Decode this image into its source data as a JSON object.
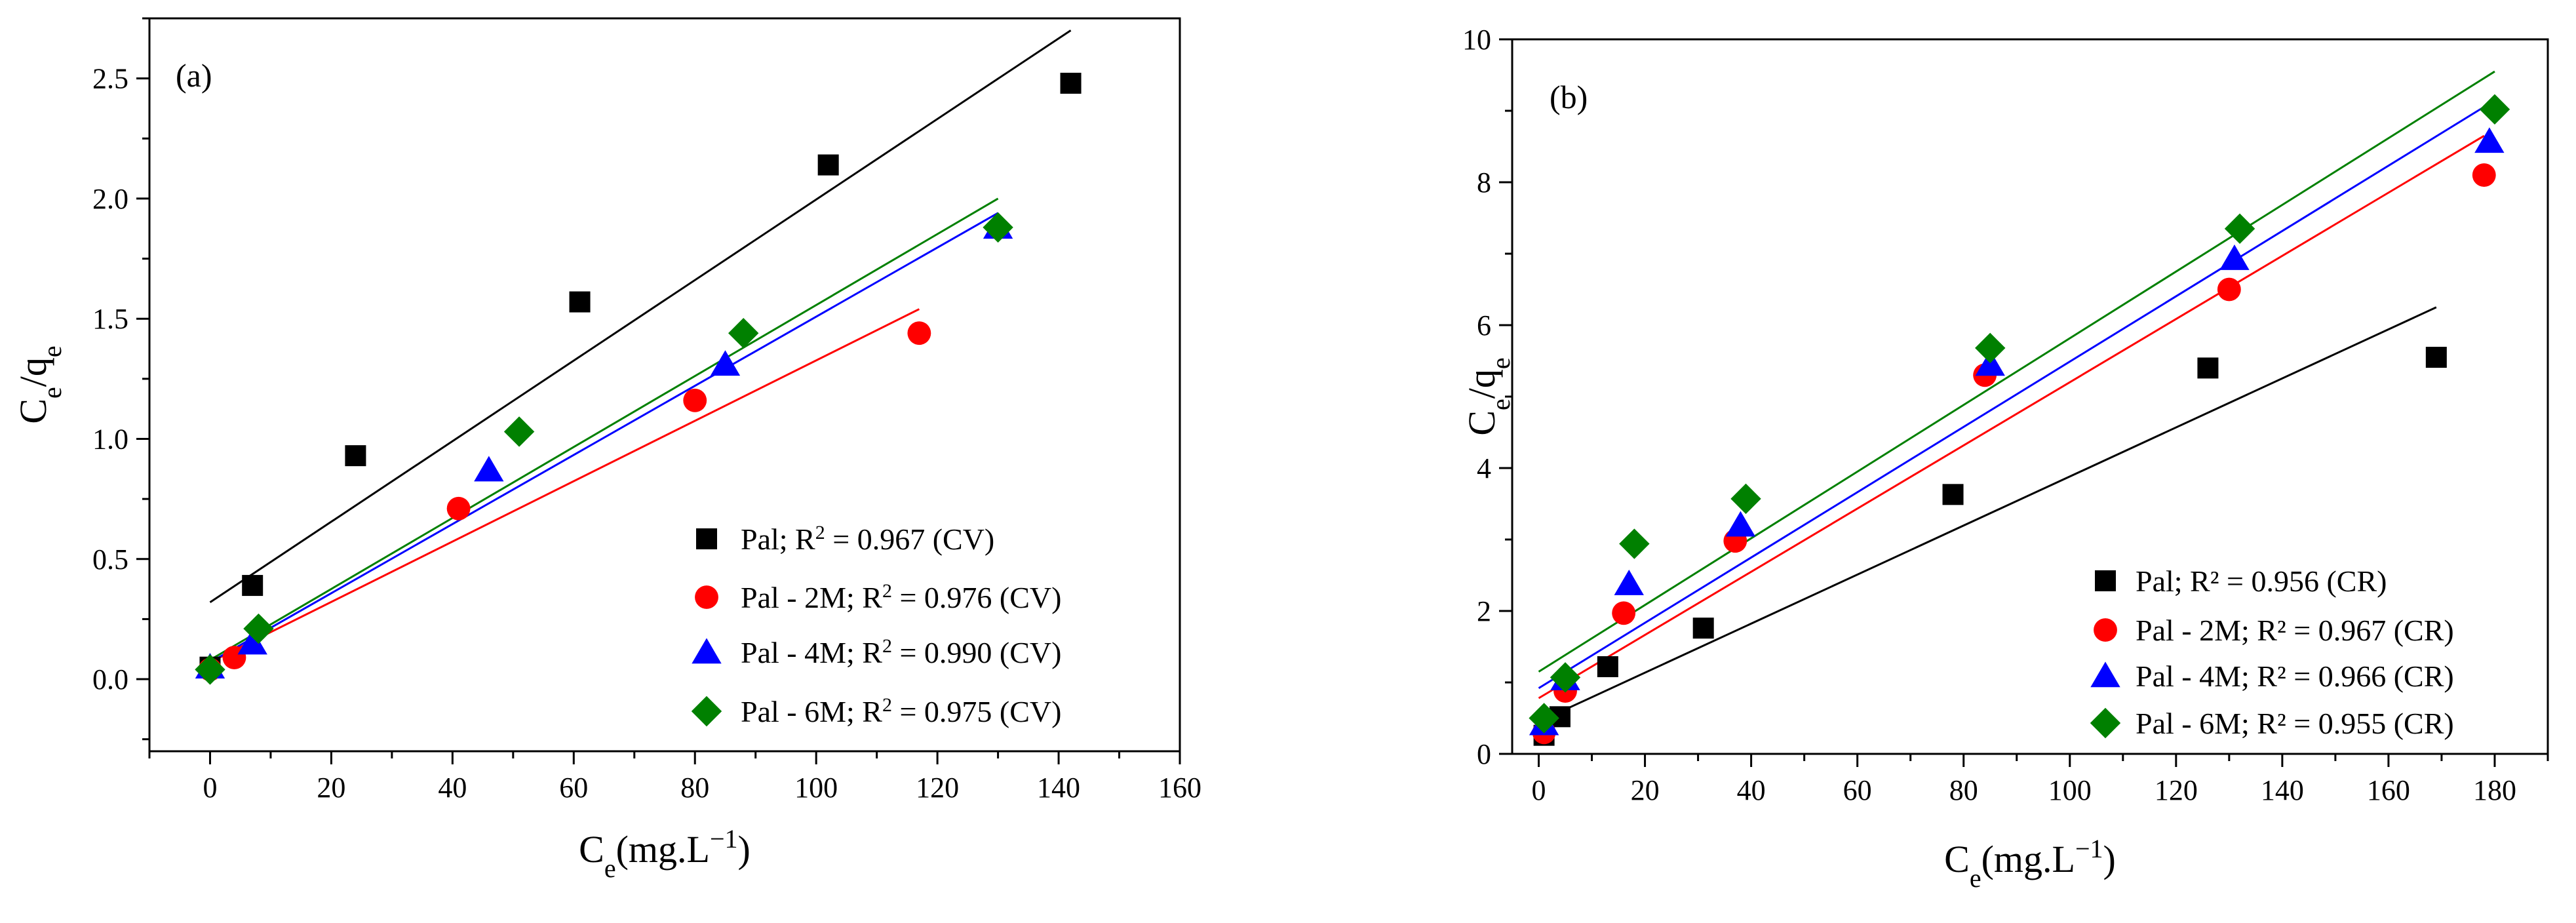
{
  "chart_data": [
    {
      "type": "scatter",
      "panel_label": "(a)",
      "xlabel_main": "C",
      "xlabel_sub": "e",
      "xlabel_unit": "(mg.L",
      "xlabel_sup": "−1",
      "xlabel_close": ")",
      "ylabel_main1": "C",
      "ylabel_sub1": "e",
      "ylabel_mid": "/q",
      "ylabel_sub2": "e",
      "xlim": [
        -10,
        160
      ],
      "ylim": [
        -0.3,
        2.75
      ],
      "xticks": [
        0,
        20,
        40,
        60,
        80,
        100,
        120,
        140,
        160
      ],
      "xtick_labels": [
        "0",
        "20",
        "40",
        "60",
        "80",
        "100",
        "120",
        "140",
        "160"
      ],
      "yticks": [
        0.0,
        0.5,
        1.0,
        1.5,
        2.0,
        2.5
      ],
      "ytick_labels": [
        "0.0",
        "0.5",
        "1.0",
        "1.5",
        "2.0",
        "2.5"
      ],
      "series": [
        {
          "name": "Pal",
          "legend_prefix": "Pal; R",
          "legend_sup": "2",
          "legend_suffix": " = 0.967 (CV)",
          "marker": "square",
          "color": "#000000",
          "x": [
            0,
            7,
            24,
            61,
            102,
            142
          ],
          "y": [
            0.05,
            0.39,
            0.93,
            1.57,
            2.14,
            2.48
          ],
          "fit": {
            "x": [
              0,
              142
            ],
            "y": [
              0.32,
              2.7
            ]
          }
        },
        {
          "name": "Pal - 2M",
          "legend_prefix": "Pal - 2M; R",
          "legend_sup": "2",
          "legend_suffix": " = 0.976 (CV)",
          "marker": "circle",
          "color": "#ff0000",
          "x": [
            0,
            4,
            41,
            80,
            117
          ],
          "y": [
            0.04,
            0.09,
            0.71,
            1.16,
            1.44
          ],
          "fit": {
            "x": [
              0,
              117
            ],
            "y": [
              0.07,
              1.54
            ]
          }
        },
        {
          "name": "Pal - 4M",
          "legend_prefix": "Pal - 4M; R",
          "legend_sup": "2",
          "legend_suffix": " = 0.990 (CV)",
          "marker": "triangle",
          "color": "#0000ff",
          "x": [
            0,
            7,
            46,
            85,
            130
          ],
          "y": [
            0.05,
            0.15,
            0.87,
            1.31,
            1.88
          ],
          "fit": {
            "x": [
              0,
              130
            ],
            "y": [
              0.07,
              1.94
            ]
          }
        },
        {
          "name": "Pal - 6M",
          "legend_prefix": "Pal - 6M; R",
          "legend_sup": "2",
          "legend_suffix": " = 0.975 (CV)",
          "marker": "diamond",
          "color": "#008000",
          "x": [
            0,
            8,
            51,
            88,
            130
          ],
          "y": [
            0.04,
            0.21,
            1.03,
            1.44,
            1.88
          ],
          "fit": {
            "x": [
              0,
              130
            ],
            "y": [
              0.08,
              2.0
            ]
          }
        }
      ]
    },
    {
      "type": "scatter",
      "panel_label": "(b)",
      "xlabel_main": "C",
      "xlabel_sub": "e",
      "xlabel_unit": "(mg.L",
      "xlabel_sup": "−1",
      "xlabel_close": ")",
      "ylabel_main1": "C",
      "ylabel_sub1": "e",
      "ylabel_mid": "/q",
      "ylabel_sub2": "e",
      "xlim": [
        -5,
        190
      ],
      "ylim": [
        0,
        10
      ],
      "xticks": [
        0,
        20,
        40,
        60,
        80,
        100,
        120,
        140,
        160,
        180
      ],
      "xtick_labels": [
        "0",
        "20",
        "40",
        "60",
        "80",
        "100",
        "120",
        "140",
        "160",
        "180"
      ],
      "yticks": [
        0,
        2,
        4,
        6,
        8,
        10
      ],
      "ytick_labels": [
        "0",
        "2",
        "4",
        "6",
        "8",
        "10"
      ],
      "series": [
        {
          "name": "Pal",
          "legend_prefix": "Pal; R² = 0.956 (CR)",
          "legend_sup": "",
          "legend_suffix": "",
          "marker": "square",
          "color": "#000000",
          "x": [
            1,
            4,
            13,
            31,
            78,
            126,
            169
          ],
          "y": [
            0.26,
            0.52,
            1.22,
            1.76,
            3.63,
            5.4,
            5.55
          ],
          "fit": {
            "x": [
              0,
              169
            ],
            "y": [
              0.45,
              6.25
            ]
          }
        },
        {
          "name": "Pal - 2M",
          "legend_prefix": "Pal - 2M; R² = 0.967 (CR)",
          "legend_sup": "",
          "legend_suffix": "",
          "marker": "circle",
          "color": "#ff0000",
          "x": [
            1,
            5,
            16,
            37,
            84,
            130,
            178
          ],
          "y": [
            0.3,
            0.88,
            1.97,
            2.98,
            5.3,
            6.5,
            8.1
          ],
          "fit": {
            "x": [
              0,
              178
            ],
            "y": [
              0.78,
              8.65
            ]
          }
        },
        {
          "name": "Pal - 4M",
          "legend_prefix": "Pal - 4M; R² = 0.966 (CR)",
          "legend_sup": "",
          "legend_suffix": "",
          "marker": "triangle",
          "color": "#0000ff",
          "x": [
            1,
            5,
            17,
            38,
            85,
            131,
            179
          ],
          "y": [
            0.42,
            1.05,
            2.38,
            3.2,
            5.45,
            6.93,
            8.57
          ],
          "fit": {
            "x": [
              0,
              179
            ],
            "y": [
              0.92,
              9.1
            ]
          }
        },
        {
          "name": "Pal - 6M",
          "legend_prefix": "Pal - 6M; R² = 0.955 (CR)",
          "legend_sup": "",
          "legend_suffix": "",
          "marker": "diamond",
          "color": "#008000",
          "x": [
            1,
            5,
            18,
            39,
            85,
            132,
            180
          ],
          "y": [
            0.5,
            1.07,
            2.94,
            3.57,
            5.68,
            7.35,
            9.02
          ],
          "fit": {
            "x": [
              0,
              180
            ],
            "y": [
              1.15,
              9.55
            ]
          }
        }
      ]
    }
  ]
}
